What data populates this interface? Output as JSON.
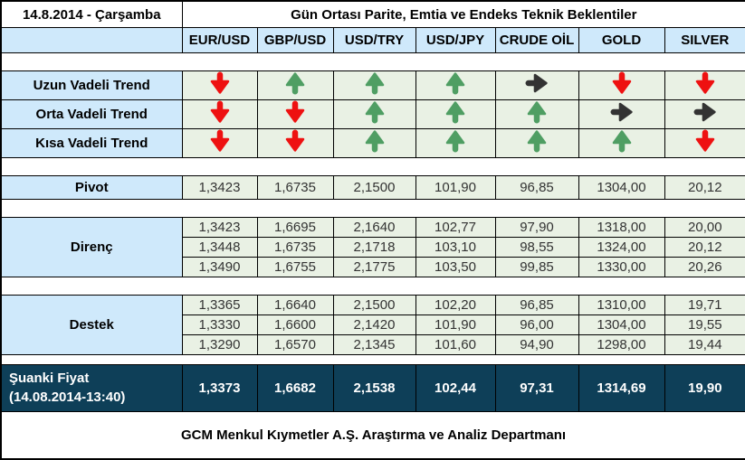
{
  "header": {
    "date": "14.8.2014 - Çarşamba",
    "title": "Gün Ortası Parite, Emtia ve Endeks Teknik Beklentiler"
  },
  "columns": [
    "EUR/USD",
    "GBP/USD",
    "USD/TRY",
    "USD/JPY",
    "CRUDE OİL",
    "GOLD",
    "SILVER"
  ],
  "trend_rows": [
    {
      "label": "Uzun Vadeli Trend",
      "arrows": [
        "down",
        "up",
        "up",
        "up",
        "right",
        "down",
        "down"
      ]
    },
    {
      "label": "Orta Vadeli Trend",
      "arrows": [
        "down",
        "down",
        "up",
        "up",
        "up",
        "right",
        "right"
      ]
    },
    {
      "label": "Kısa Vadeli Trend",
      "arrows": [
        "down",
        "down",
        "up",
        "up",
        "up",
        "up",
        "down"
      ]
    }
  ],
  "pivot": {
    "label": "Pivot",
    "values": [
      "1,3423",
      "1,6735",
      "2,1500",
      "101,90",
      "96,85",
      "1304,00",
      "20,12"
    ]
  },
  "resistance": {
    "label": "Direnç",
    "rows": [
      [
        "1,3423",
        "1,6695",
        "2,1640",
        "102,77",
        "97,90",
        "1318,00",
        "20,00"
      ],
      [
        "1,3448",
        "1,6735",
        "2,1718",
        "103,10",
        "98,55",
        "1324,00",
        "20,12"
      ],
      [
        "1,3490",
        "1,6755",
        "2,1775",
        "103,50",
        "99,85",
        "1330,00",
        "20,26"
      ]
    ]
  },
  "support": {
    "label": "Destek",
    "rows": [
      [
        "1,3365",
        "1,6640",
        "2,1500",
        "102,20",
        "96,85",
        "1310,00",
        "19,71"
      ],
      [
        "1,3330",
        "1,6600",
        "2,1420",
        "101,90",
        "96,00",
        "1304,00",
        "19,55"
      ],
      [
        "1,3290",
        "1,6570",
        "2,1345",
        "101,60",
        "94,90",
        "1298,00",
        "19,44"
      ]
    ]
  },
  "current_price": {
    "label": "Şuanki Fiyat",
    "sublabel": "(14.08.2014-13:40)",
    "values": [
      "1,3373",
      "1,6682",
      "2,1538",
      "102,44",
      "97,31",
      "1314,69",
      "19,90"
    ]
  },
  "footer": "GCM Menkul Kıymetler A.Ş. Araştırma ve Analiz Departmanı",
  "colors": {
    "arrow_up": "#4f9e63",
    "arrow_down": "#ee1111",
    "arrow_right": "#333333",
    "header_bg": "#cfe9fb",
    "value_bg": "#e9f1e4",
    "current_bg": "#0e3f58"
  }
}
